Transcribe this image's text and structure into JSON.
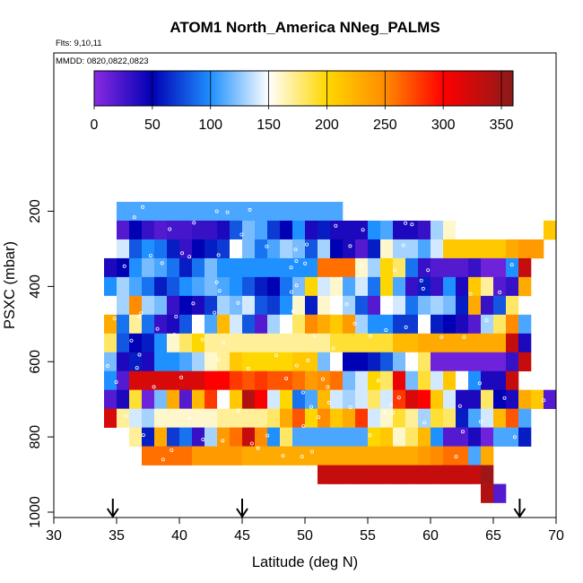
{
  "chart_data": {
    "type": "heatmap",
    "title": "ATOM1 North_America NNeg_PALMS",
    "annotations": [
      "Flts: 9,10,11",
      "MMDD: 0820,0822,0823"
    ],
    "xlabel": "Latitude (deg N)",
    "ylabel": "PSXC (mbar)",
    "xlim": [
      30,
      70
    ],
    "ylim": [
      1000,
      0
    ],
    "x_ticks": [
      "30",
      "35",
      "40",
      "45",
      "50",
      "55",
      "60",
      "65",
      "70"
    ],
    "y_ticks": [
      "200",
      "400",
      "600",
      "800",
      "1000"
    ],
    "colorbar": {
      "range": [
        0,
        360
      ],
      "ticks": [
        "0",
        "50",
        "100",
        "150",
        "200",
        "250",
        "300",
        "350"
      ],
      "stops": [
        "#8a2be2",
        "#0000b4",
        "#1e90ff",
        "#ffffff",
        "#ffd700",
        "#ff8c00",
        "#ff0000",
        "#8b1a1a"
      ],
      "stop_values": [
        0,
        50,
        100,
        150,
        200,
        250,
        300,
        360
      ]
    },
    "arrows_latitude": [
      34.7,
      45.0,
      67.1
    ],
    "grid": false,
    "cell_width_deg": 1,
    "cell_height_mbar": 50,
    "rows": [
      {
        "p": 200,
        "lat0": 35,
        "values": [
          110,
          110,
          110,
          110,
          110,
          110,
          110,
          110,
          110,
          110,
          110,
          110,
          110,
          110,
          110,
          110,
          110,
          110
        ]
      },
      {
        "p": 250,
        "lat0": 35,
        "values": [
          20,
          50,
          30,
          20,
          25,
          25,
          30,
          30,
          40,
          80,
          120,
          110,
          70,
          50,
          100,
          40,
          60,
          40,
          40,
          40,
          100,
          110,
          40,
          40,
          30,
          130,
          160,
          150,
          150,
          150,
          150,
          150,
          150,
          150,
          210
        ]
      },
      {
        "p": 300,
        "lat0": 35,
        "values": [
          140,
          80,
          100,
          90,
          60,
          30,
          50,
          60,
          70,
          150,
          120,
          90,
          110,
          130,
          120,
          80,
          130,
          50,
          40,
          20,
          60,
          160,
          130,
          130,
          110,
          140,
          210,
          210,
          210,
          210,
          210,
          230,
          240,
          240
        ]
      },
      {
        "p": 350,
        "lat0": 34,
        "values": [
          40,
          50,
          100,
          120,
          110,
          90,
          60,
          90,
          120,
          100,
          100,
          100,
          100,
          100,
          100,
          100,
          100,
          260,
          260,
          260,
          160,
          130,
          200,
          180,
          90,
          30,
          20,
          20,
          20,
          30,
          10,
          10,
          100,
          330
        ]
      },
      {
        "p": 400,
        "lat0": 34,
        "values": [
          100,
          130,
          110,
          90,
          60,
          80,
          100,
          110,
          120,
          110,
          100,
          80,
          60,
          50,
          90,
          120,
          200,
          140,
          160,
          110,
          140,
          90,
          200,
          110,
          30,
          60,
          30,
          100,
          40,
          210,
          170,
          20,
          30,
          230
        ]
      },
      {
        "p": 450,
        "lat0": 34,
        "values": [
          150,
          130,
          250,
          130,
          120,
          30,
          50,
          40,
          70,
          130,
          120,
          140,
          80,
          70,
          100,
          160,
          60,
          160,
          150,
          130,
          80,
          20,
          150,
          140,
          90,
          120,
          130,
          120,
          60,
          230,
          30,
          80,
          180
        ]
      },
      {
        "p": 500,
        "lat0": 34,
        "values": [
          230,
          90,
          170,
          90,
          30,
          40,
          80,
          150,
          110,
          220,
          140,
          80,
          20,
          130,
          150,
          180,
          250,
          230,
          210,
          240,
          130,
          100,
          100,
          70,
          70,
          150,
          60,
          50,
          40,
          20,
          130,
          180,
          250,
          110
        ]
      },
      {
        "p": 550,
        "lat0": 34,
        "values": [
          180,
          80,
          50,
          60,
          100,
          160,
          180,
          200,
          170,
          170,
          170,
          170,
          170,
          170,
          170,
          170,
          170,
          170,
          190,
          190,
          190,
          190,
          190,
          220,
          220,
          230,
          230,
          230,
          230,
          230,
          230,
          230,
          330,
          40
        ]
      },
      {
        "p": 600,
        "lat0": 34,
        "values": [
          120,
          40,
          60,
          40,
          100,
          100,
          110,
          130,
          160,
          170,
          210,
          200,
          200,
          200,
          200,
          210,
          210,
          120,
          150,
          50,
          50,
          60,
          80,
          120,
          150,
          180,
          10,
          10,
          10,
          10,
          10,
          10,
          30,
          330
        ]
      },
      {
        "p": 650,
        "lat0": 34,
        "values": [
          100,
          20,
          320,
          320,
          320,
          320,
          320,
          320,
          300,
          300,
          280,
          270,
          280,
          270,
          270,
          260,
          240,
          250,
          260,
          120,
          140,
          200,
          180,
          310,
          120,
          190,
          140,
          210,
          150,
          100,
          40,
          40,
          330
        ]
      },
      {
        "p": 700,
        "lat0": 34,
        "values": [
          20,
          40,
          190,
          10,
          120,
          230,
          20,
          220,
          280,
          150,
          210,
          340,
          300,
          140,
          200,
          90,
          110,
          220,
          140,
          130,
          140,
          180,
          140,
          280,
          320,
          300,
          210,
          140,
          40,
          40,
          180,
          50,
          40,
          230,
          210,
          20
        ]
      },
      {
        "p": 750,
        "lat0": 34,
        "values": [
          320,
          170,
          140,
          130,
          160,
          160,
          160,
          160,
          160,
          170,
          170,
          170,
          170,
          180,
          230,
          270,
          200,
          250,
          210,
          230,
          280,
          140,
          160,
          190,
          170,
          130,
          190,
          180,
          60,
          110,
          140,
          220,
          270,
          110
        ]
      },
      {
        "p": 800,
        "lat0": 36,
        "values": [
          170,
          60,
          230,
          70,
          90,
          30,
          130,
          240,
          260,
          330,
          250,
          100,
          180,
          110,
          110,
          110,
          110,
          110,
          110,
          200,
          210,
          160,
          180,
          220,
          100,
          20,
          20,
          40,
          10,
          110,
          110,
          60
        ]
      },
      {
        "p": 850,
        "lat0": 37,
        "values": [
          260,
          260,
          260,
          260,
          240,
          240,
          240,
          240,
          230,
          230,
          230,
          230,
          230,
          230,
          230,
          230,
          230,
          230,
          230,
          230,
          230,
          230,
          240,
          250,
          260,
          260,
          110,
          230
        ]
      },
      {
        "p": 900,
        "lat0": 51,
        "values": [
          330,
          330,
          330,
          330,
          330,
          330,
          330,
          330,
          330,
          330,
          330,
          330,
          330,
          350
        ]
      },
      {
        "p": 950,
        "lat0": 64,
        "values": [
          340,
          20
        ]
      }
    ]
  }
}
